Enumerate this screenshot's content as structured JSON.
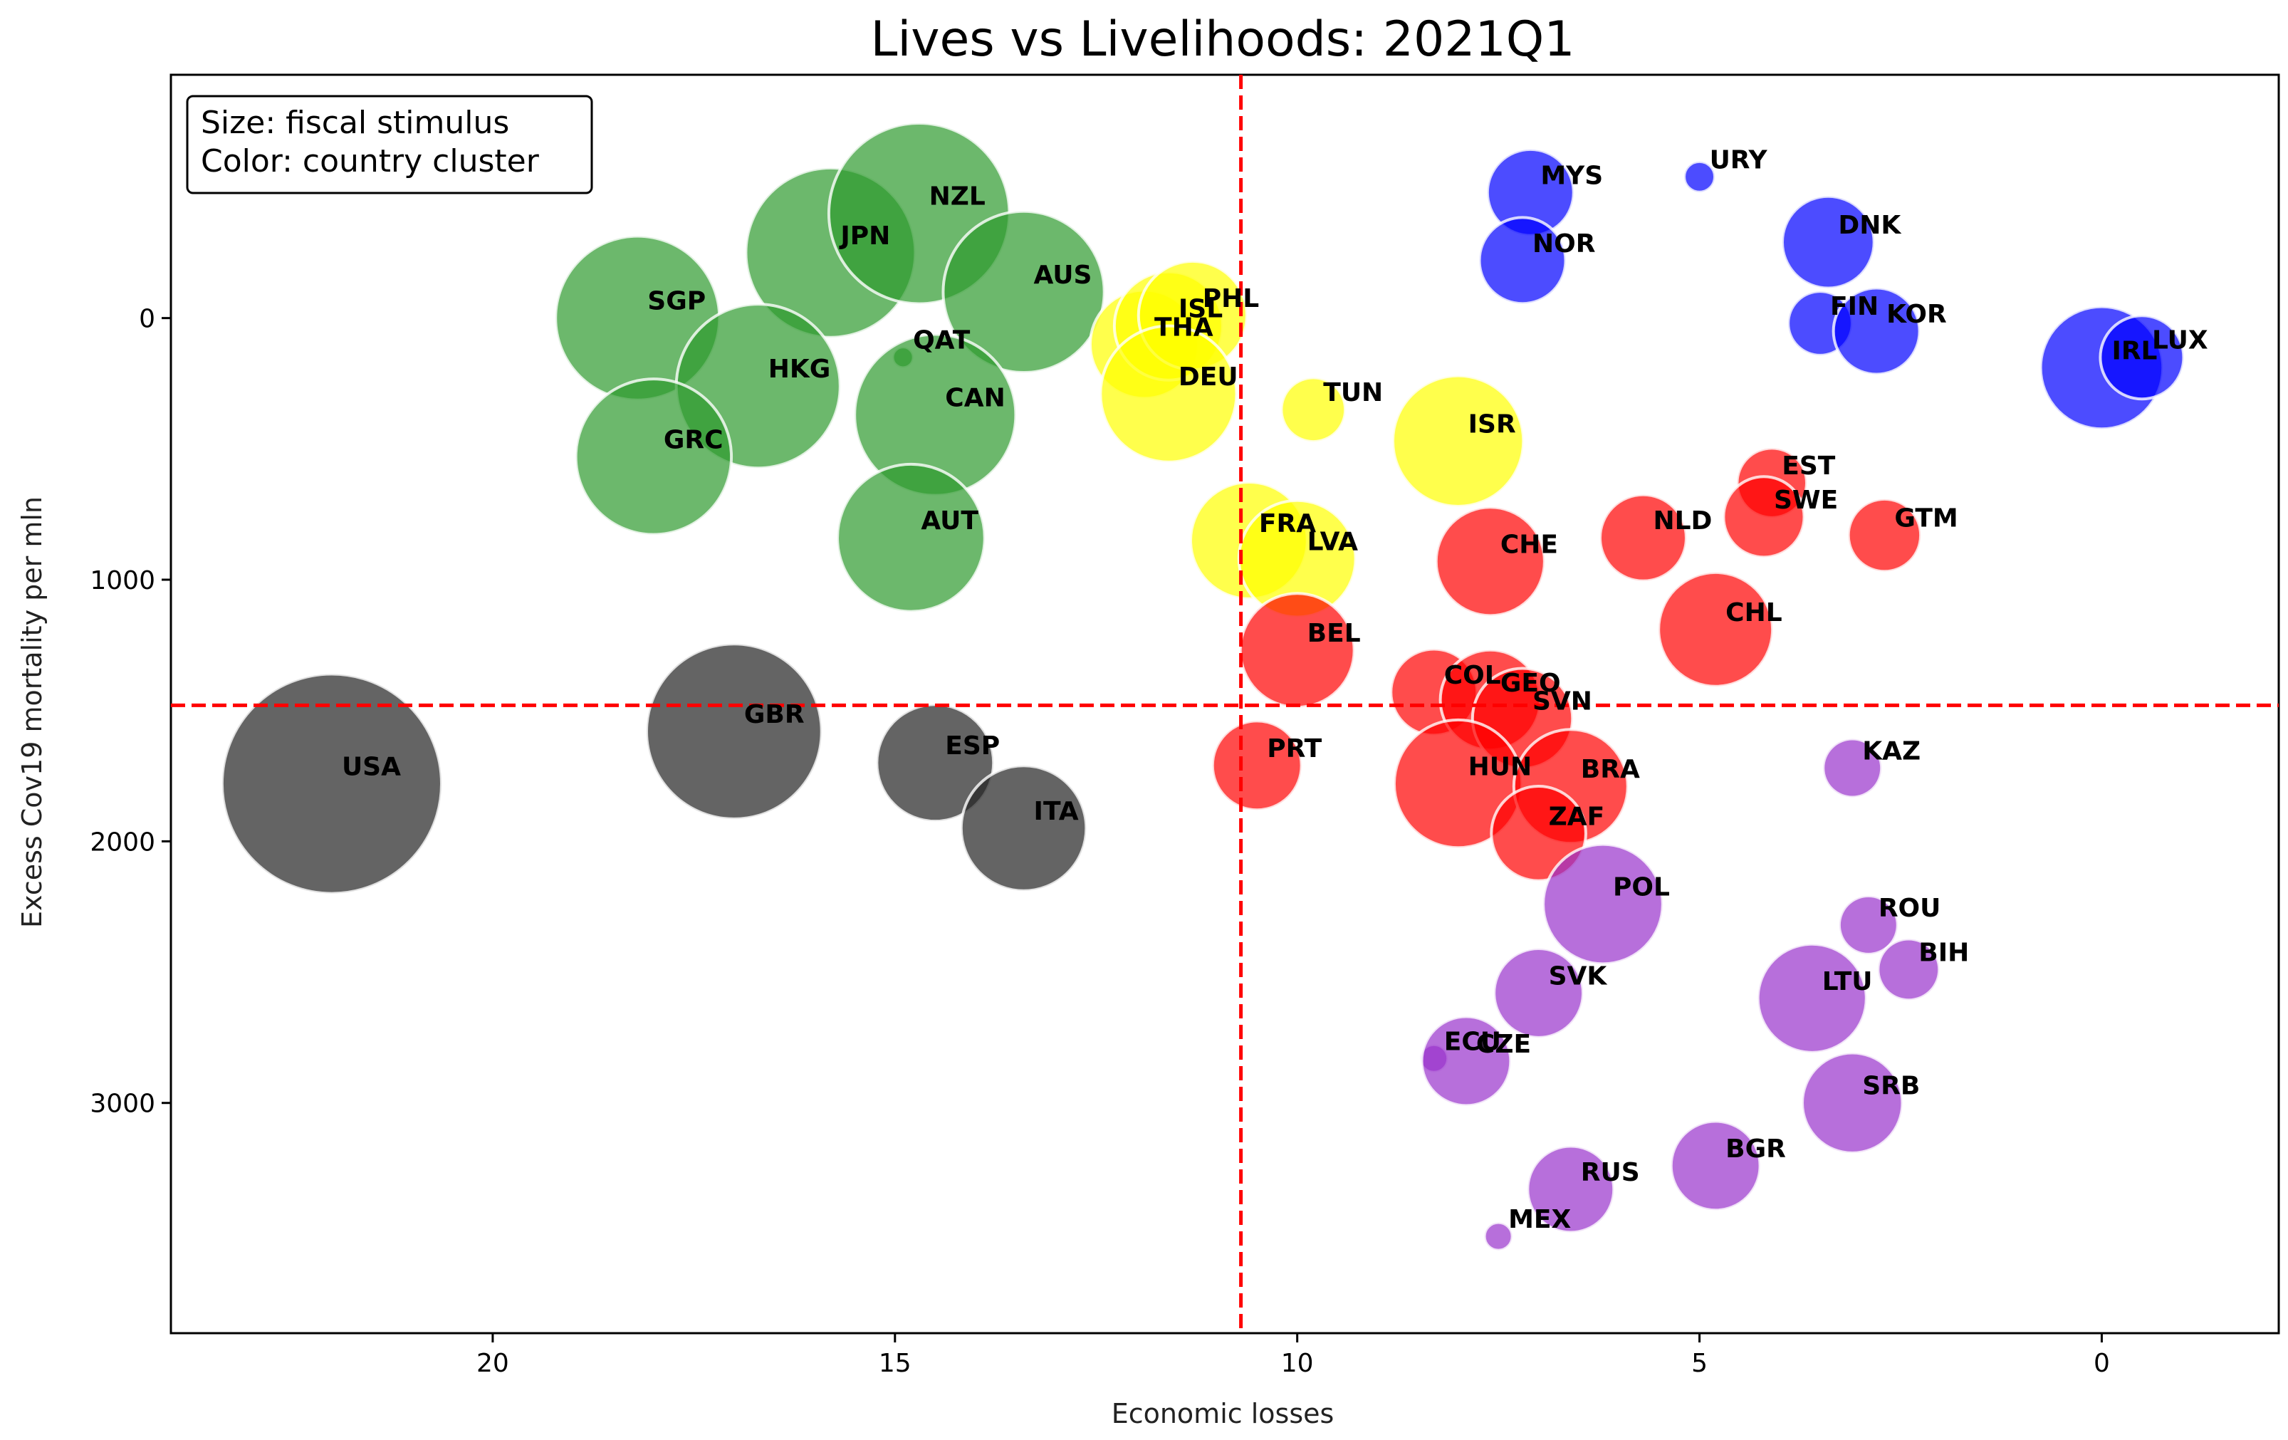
{
  "chart_data": {
    "type": "scatter",
    "title": "Lives vs Livelihoods: 2021Q1",
    "xlabel": "Economic losses",
    "ylabel": "Excess Cov19 mortality per mln",
    "xlim": [
      24,
      -2.2
    ],
    "ylim": [
      3880,
      -930
    ],
    "xticks": [
      20,
      15,
      10,
      5,
      0
    ],
    "yticks": [
      0,
      1000,
      2000,
      3000
    ],
    "grid": false,
    "legend": {
      "position": "top-left",
      "lines": [
        "Size: fiscal stimulus",
        "Color: country cluster"
      ]
    },
    "reference_lines": {
      "x": 10.7,
      "y": 1480
    },
    "cluster_colors": {
      "green": "#2e9a2e",
      "yellow": "#ffff00",
      "blue": "#0000ff",
      "red": "#ff0000",
      "purple": "#9932cc",
      "black": "#222222"
    },
    "marker_alpha": 0.7,
    "marker_edge": "#ffffff",
    "reference_line_color": "#ff0000",
    "points": [
      {
        "label": "SGP",
        "x": 18.2,
        "y": 0,
        "size": 11.8,
        "cluster": "green"
      },
      {
        "label": "JPN",
        "x": 15.8,
        "y": -250,
        "size": 12.2,
        "cluster": "green"
      },
      {
        "label": "NZL",
        "x": 14.7,
        "y": -400,
        "size": 13.0,
        "cluster": "green"
      },
      {
        "label": "AUS",
        "x": 13.4,
        "y": -100,
        "size": 11.6,
        "cluster": "green"
      },
      {
        "label": "HKG",
        "x": 16.7,
        "y": 260,
        "size": 11.8,
        "cluster": "green"
      },
      {
        "label": "QAT",
        "x": 14.9,
        "y": 150,
        "size": 1.5,
        "cluster": "green"
      },
      {
        "label": "CAN",
        "x": 14.5,
        "y": 370,
        "size": 11.6,
        "cluster": "green"
      },
      {
        "label": "GRC",
        "x": 18.0,
        "y": 530,
        "size": 11.2,
        "cluster": "green"
      },
      {
        "label": "AUT",
        "x": 14.8,
        "y": 840,
        "size": 10.6,
        "cluster": "green"
      },
      {
        "label": "THA",
        "x": 11.9,
        "y": 100,
        "size": 7.8,
        "cluster": "yellow"
      },
      {
        "label": "ISL",
        "x": 11.6,
        "y": 30,
        "size": 7.8,
        "cluster": "yellow"
      },
      {
        "label": "PHL",
        "x": 11.3,
        "y": -10,
        "size": 7.8,
        "cluster": "yellow"
      },
      {
        "label": "DEU",
        "x": 11.6,
        "y": 290,
        "size": 9.8,
        "cluster": "yellow"
      },
      {
        "label": "TUN",
        "x": 9.8,
        "y": 350,
        "size": 4.6,
        "cluster": "yellow"
      },
      {
        "label": "ISR",
        "x": 8.0,
        "y": 470,
        "size": 9.4,
        "cluster": "yellow"
      },
      {
        "label": "FRA",
        "x": 10.6,
        "y": 850,
        "size": 8.4,
        "cluster": "yellow"
      },
      {
        "label": "LVA",
        "x": 10.0,
        "y": 920,
        "size": 8.4,
        "cluster": "yellow"
      },
      {
        "label": "MYS",
        "x": 7.1,
        "y": -480,
        "size": 6.2,
        "cluster": "blue"
      },
      {
        "label": "URY",
        "x": 5.0,
        "y": -540,
        "size": 2.2,
        "cluster": "blue"
      },
      {
        "label": "NOR",
        "x": 7.2,
        "y": -220,
        "size": 6.2,
        "cluster": "blue"
      },
      {
        "label": "DNK",
        "x": 3.4,
        "y": -290,
        "size": 6.6,
        "cluster": "blue"
      },
      {
        "label": "FIN",
        "x": 3.5,
        "y": 20,
        "size": 4.6,
        "cluster": "blue"
      },
      {
        "label": "KOR",
        "x": 2.8,
        "y": 50,
        "size": 6.2,
        "cluster": "blue"
      },
      {
        "label": "IRL",
        "x": 0.0,
        "y": 190,
        "size": 8.8,
        "cluster": "blue"
      },
      {
        "label": "LUX",
        "x": -0.5,
        "y": 150,
        "size": 6.0,
        "cluster": "blue"
      },
      {
        "label": "EST",
        "x": 4.1,
        "y": 630,
        "size": 5.0,
        "cluster": "red"
      },
      {
        "label": "SWE",
        "x": 4.2,
        "y": 760,
        "size": 5.8,
        "cluster": "red"
      },
      {
        "label": "GTM",
        "x": 2.7,
        "y": 830,
        "size": 5.2,
        "cluster": "red"
      },
      {
        "label": "NLD",
        "x": 5.7,
        "y": 840,
        "size": 6.2,
        "cluster": "red"
      },
      {
        "label": "CHE",
        "x": 7.6,
        "y": 930,
        "size": 7.8,
        "cluster": "red"
      },
      {
        "label": "CHL",
        "x": 4.8,
        "y": 1190,
        "size": 8.2,
        "cluster": "red"
      },
      {
        "label": "BEL",
        "x": 10.0,
        "y": 1270,
        "size": 8.2,
        "cluster": "red"
      },
      {
        "label": "COL",
        "x": 8.3,
        "y": 1430,
        "size": 6.2,
        "cluster": "red"
      },
      {
        "label": "GEO",
        "x": 7.6,
        "y": 1460,
        "size": 7.2,
        "cluster": "red"
      },
      {
        "label": "SVN",
        "x": 7.2,
        "y": 1530,
        "size": 7.2,
        "cluster": "red"
      },
      {
        "label": "HUN",
        "x": 8.0,
        "y": 1780,
        "size": 9.2,
        "cluster": "red"
      },
      {
        "label": "BRA",
        "x": 6.6,
        "y": 1790,
        "size": 8.2,
        "cluster": "red"
      },
      {
        "label": "ZAF",
        "x": 7.0,
        "y": 1970,
        "size": 6.8,
        "cluster": "red"
      },
      {
        "label": "PRT",
        "x": 10.5,
        "y": 1710,
        "size": 6.4,
        "cluster": "red"
      },
      {
        "label": "USA",
        "x": 22.0,
        "y": 1780,
        "size": 15.8,
        "cluster": "black"
      },
      {
        "label": "GBR",
        "x": 17.0,
        "y": 1580,
        "size": 12.6,
        "cluster": "black"
      },
      {
        "label": "ESP",
        "x": 14.5,
        "y": 1700,
        "size": 8.4,
        "cluster": "black"
      },
      {
        "label": "ITA",
        "x": 13.4,
        "y": 1950,
        "size": 9.0,
        "cluster": "black"
      },
      {
        "label": "KAZ",
        "x": 3.1,
        "y": 1720,
        "size": 4.2,
        "cluster": "purple"
      },
      {
        "label": "POL",
        "x": 6.2,
        "y": 2240,
        "size": 8.6,
        "cluster": "purple"
      },
      {
        "label": "ROU",
        "x": 2.9,
        "y": 2320,
        "size": 4.2,
        "cluster": "purple"
      },
      {
        "label": "BIH",
        "x": 2.4,
        "y": 2490,
        "size": 4.4,
        "cluster": "purple"
      },
      {
        "label": "SVK",
        "x": 7.0,
        "y": 2580,
        "size": 6.4,
        "cluster": "purple"
      },
      {
        "label": "LTU",
        "x": 3.6,
        "y": 2600,
        "size": 7.8,
        "cluster": "purple"
      },
      {
        "label": "ECU",
        "x": 8.3,
        "y": 2830,
        "size": 2.0,
        "cluster": "purple"
      },
      {
        "label": "CZE",
        "x": 7.9,
        "y": 2840,
        "size": 6.4,
        "cluster": "purple"
      },
      {
        "label": "SRB",
        "x": 3.1,
        "y": 3000,
        "size": 7.2,
        "cluster": "purple"
      },
      {
        "label": "BGR",
        "x": 4.8,
        "y": 3240,
        "size": 6.4,
        "cluster": "purple"
      },
      {
        "label": "RUS",
        "x": 6.6,
        "y": 3330,
        "size": 6.2,
        "cluster": "purple"
      },
      {
        "label": "MEX",
        "x": 7.5,
        "y": 3510,
        "size": 2.0,
        "cluster": "purple"
      }
    ]
  }
}
